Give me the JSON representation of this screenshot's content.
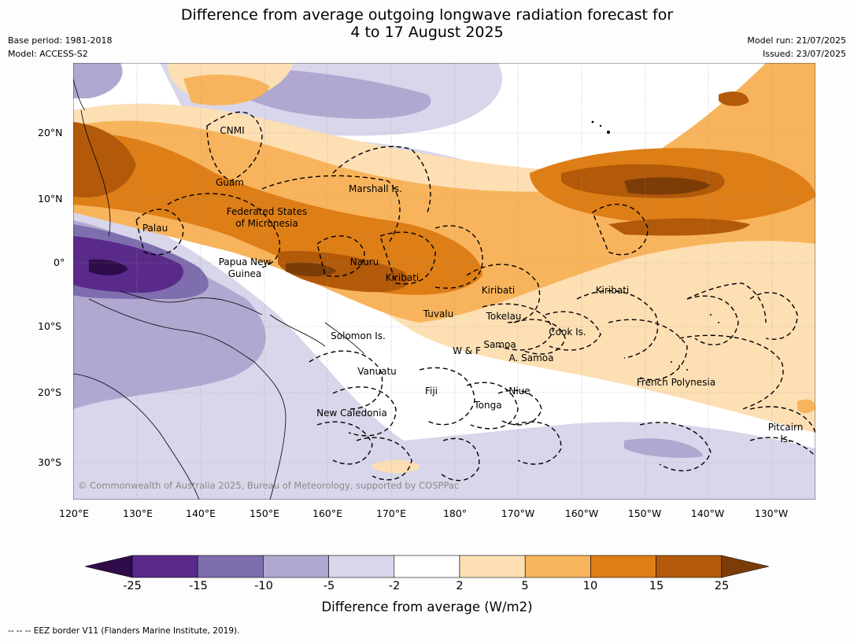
{
  "title_line1": "Difference from average outgoing longwave radiation forecast for",
  "title_line2": "4 to 17 August 2025",
  "meta": {
    "base_period": "Base period: 1981-2018",
    "model": "Model: ACCESS-S2",
    "model_run": "Model run: 21/07/2025",
    "issued": "Issued: 23/07/2025"
  },
  "lat_labels": [
    "20°N",
    "10°N",
    "0°",
    "10°S",
    "20°S",
    "30°S"
  ],
  "lon_labels": [
    "120°E",
    "130°E",
    "140°E",
    "150°E",
    "160°E",
    "170°E",
    "180°",
    "170°W",
    "160°W",
    "150°W",
    "140°W",
    "130°W"
  ],
  "places": [
    "CNMI",
    "Guam",
    "Marshall Is.",
    "Federated States",
    "of Micronesia",
    "Palau",
    "Papua New",
    "Guinea",
    "Nauru",
    "Kiribati",
    "Kiribati",
    "Kiribati",
    "Tuvalu",
    "Tokelau",
    "Cook Is.",
    "Solomon Is.",
    "W & F",
    "Samoa",
    "A. Samoa",
    "Vanuatu",
    "Fiji",
    "Niue",
    "Tonga",
    "French Polynesia",
    "New Caledonia",
    "Pitcairn",
    "Is."
  ],
  "copyright": "© Commonwealth of Australia 2025, Bureau of Meteorology, supported by COSPPac",
  "colorbar": {
    "ticks": [
      "-25",
      "-15",
      "-10",
      "-5",
      "-2",
      "2",
      "5",
      "10",
      "15",
      "25"
    ],
    "colors": [
      "#2e0c4a",
      "#5a2a8a",
      "#7e6eae",
      "#b0a8d0",
      "#d8d6ea",
      "#ffffff",
      "#fddfb4",
      "#f8b45c",
      "#de7e16",
      "#b25a0a",
      "#7c3c07"
    ],
    "label": "Difference from average (W/m2)"
  },
  "footnote": "--  --  -- EEZ border V11 (Flanders Marine Institute, 2019)."
}
